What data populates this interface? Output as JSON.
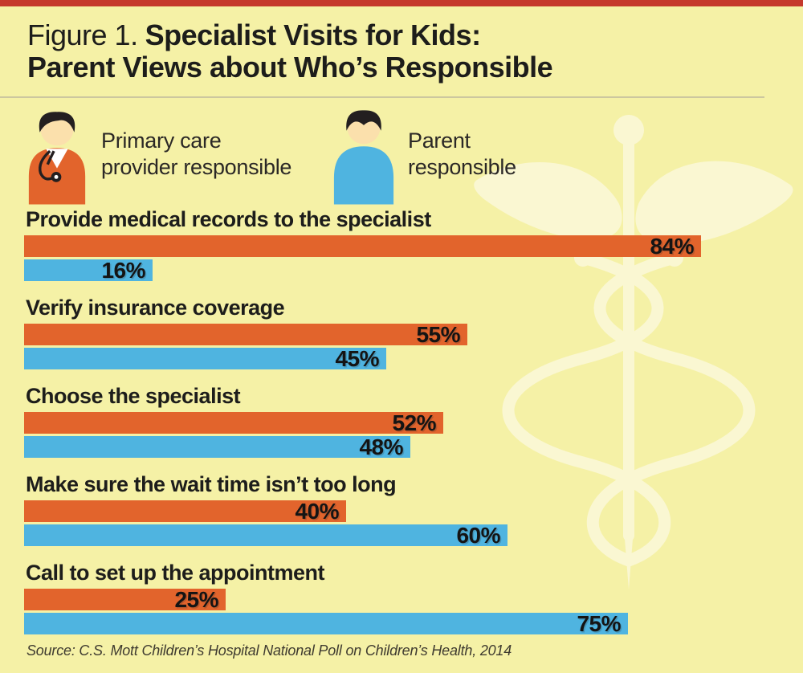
{
  "page": {
    "background": "#f5f1a6",
    "top_bar_color": "#c5392c",
    "divider_color": "#ccc79f"
  },
  "header": {
    "figure_label": "Figure 1.",
    "title_line1": "Specialist Visits for Kids:",
    "title_line2": "Parent Views about Who’s Responsible"
  },
  "legend": {
    "items": [
      {
        "icon": "doctor-icon",
        "color": "#e2642c",
        "label_line1": "Primary care",
        "label_line2": "provider responsible"
      },
      {
        "icon": "parent-icon",
        "color": "#4fb4e0",
        "label_line1": "Parent",
        "label_line2": "responsible"
      }
    ]
  },
  "chart_data": {
    "type": "bar",
    "orientation": "horizontal",
    "title": "Specialist Visits for Kids: Parent Views about Who’s Responsible",
    "categories": [
      "Provide medical records to the specialist",
      "Verify insurance coverage",
      "Choose the specialist",
      "Make sure the wait time isn’t too long",
      "Call to set up the appointment"
    ],
    "series": [
      {
        "name": "Primary care provider responsible",
        "color": "#e2642c",
        "values": [
          84,
          55,
          52,
          40,
          25
        ]
      },
      {
        "name": "Parent responsible",
        "color": "#4fb4e0",
        "values": [
          16,
          45,
          48,
          60,
          75
        ]
      }
    ],
    "value_suffix": "%",
    "xlim": [
      0,
      100
    ],
    "value_labels": "inside-end",
    "grid": false,
    "legend_position": "top"
  },
  "watermark": {
    "icon": "caduceus-icon",
    "color": "#faf7d2"
  },
  "source": {
    "text": "Source: C.S. Mott Children’s Hospital National Poll on Children’s Health, 2014"
  }
}
